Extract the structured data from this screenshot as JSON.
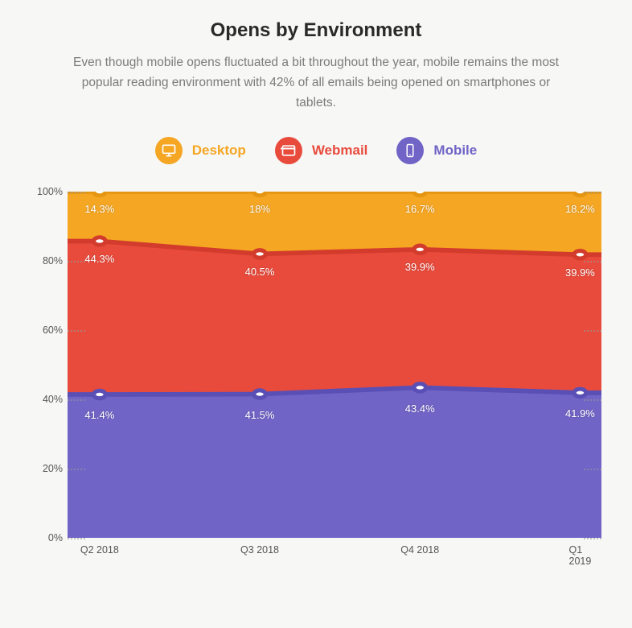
{
  "title": "Opens by Environment",
  "subtitle": "Even though mobile opens fluctuated a bit throughout the year, mobile remains the most popular reading environment with 42% of all emails being opened on smartphones or tablets.",
  "background_color": "#f7f7f6",
  "chart": {
    "type": "stacked-area",
    "categories": [
      "Q2 2018",
      "Q3 2018",
      "Q4 2018",
      "Q1 2019"
    ],
    "category_positions_pct": [
      6,
      36,
      66,
      96
    ],
    "y_axis": {
      "min": 0,
      "max": 100,
      "step": 20,
      "tick_labels": [
        "0%",
        "20%",
        "40%",
        "60%",
        "80%",
        "100%"
      ],
      "label_fontsize": 12.5,
      "label_color": "#555555",
      "grid_color": "#999999",
      "grid_style": "dotted"
    },
    "series": [
      {
        "key": "mobile",
        "label": "Mobile",
        "color_fill": "#7064c6",
        "color_line": "#5a4fb5",
        "label_color": "#7064c6",
        "icon": "mobile",
        "values": [
          41.4,
          41.5,
          43.4,
          41.9
        ],
        "value_labels": [
          "41.4%",
          "41.5%",
          "43.4%",
          "41.9%"
        ],
        "label_offset_y": 18
      },
      {
        "key": "webmail",
        "label": "Webmail",
        "color_fill": "#e84b3c",
        "color_line": "#d33b2c",
        "label_color": "#e84b3c",
        "icon": "webmail",
        "values": [
          44.3,
          40.5,
          39.9,
          39.9
        ],
        "value_labels": [
          "44.3%",
          "40.5%",
          "39.9%",
          "39.9%"
        ],
        "label_offset_y": 14
      },
      {
        "key": "desktop",
        "label": "Desktop",
        "color_fill": "#f5a623",
        "color_line": "#e59613",
        "label_color": "#f5a623",
        "icon": "desktop",
        "values": [
          14.3,
          18.0,
          16.7,
          18.2
        ],
        "value_labels": [
          "14.3%",
          "18%",
          "16.7%",
          "18.2%"
        ],
        "label_offset_y": 14
      }
    ],
    "marker": {
      "radius": 5,
      "fill": "#ffffff",
      "stroke_width": 2.2
    },
    "line_width": 2.5
  },
  "legend": {
    "order": [
      "desktop",
      "webmail",
      "mobile"
    ],
    "icon_size": 34,
    "fontsize": 17
  }
}
